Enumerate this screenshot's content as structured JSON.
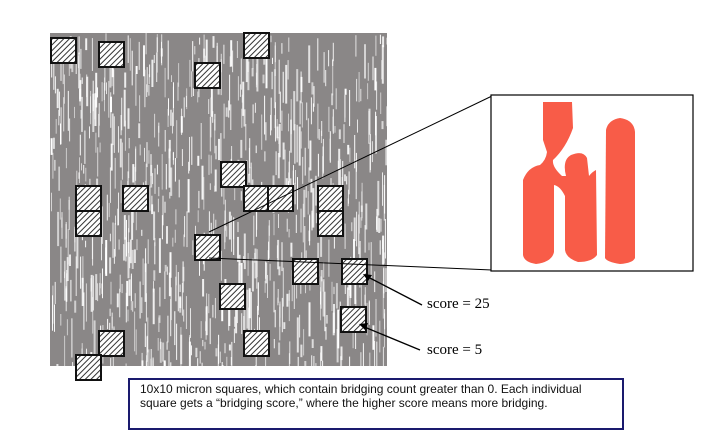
{
  "figure": {
    "colors": {
      "layout_fill": "#8a8787",
      "box_stroke": "#111111",
      "hatch": "#333333",
      "zoom_shape": "#f85c48",
      "caption_border": "#1a1a6e"
    },
    "annotations": [
      {
        "id": "score-25",
        "text": "score = 25"
      },
      {
        "id": "score-5",
        "text": "score = 5"
      }
    ]
  },
  "caption": {
    "text": "10x10 micron squares, which contain bridging count greater than 0. Each individual square gets a “bridging score,” where the higher score means more bridging."
  }
}
